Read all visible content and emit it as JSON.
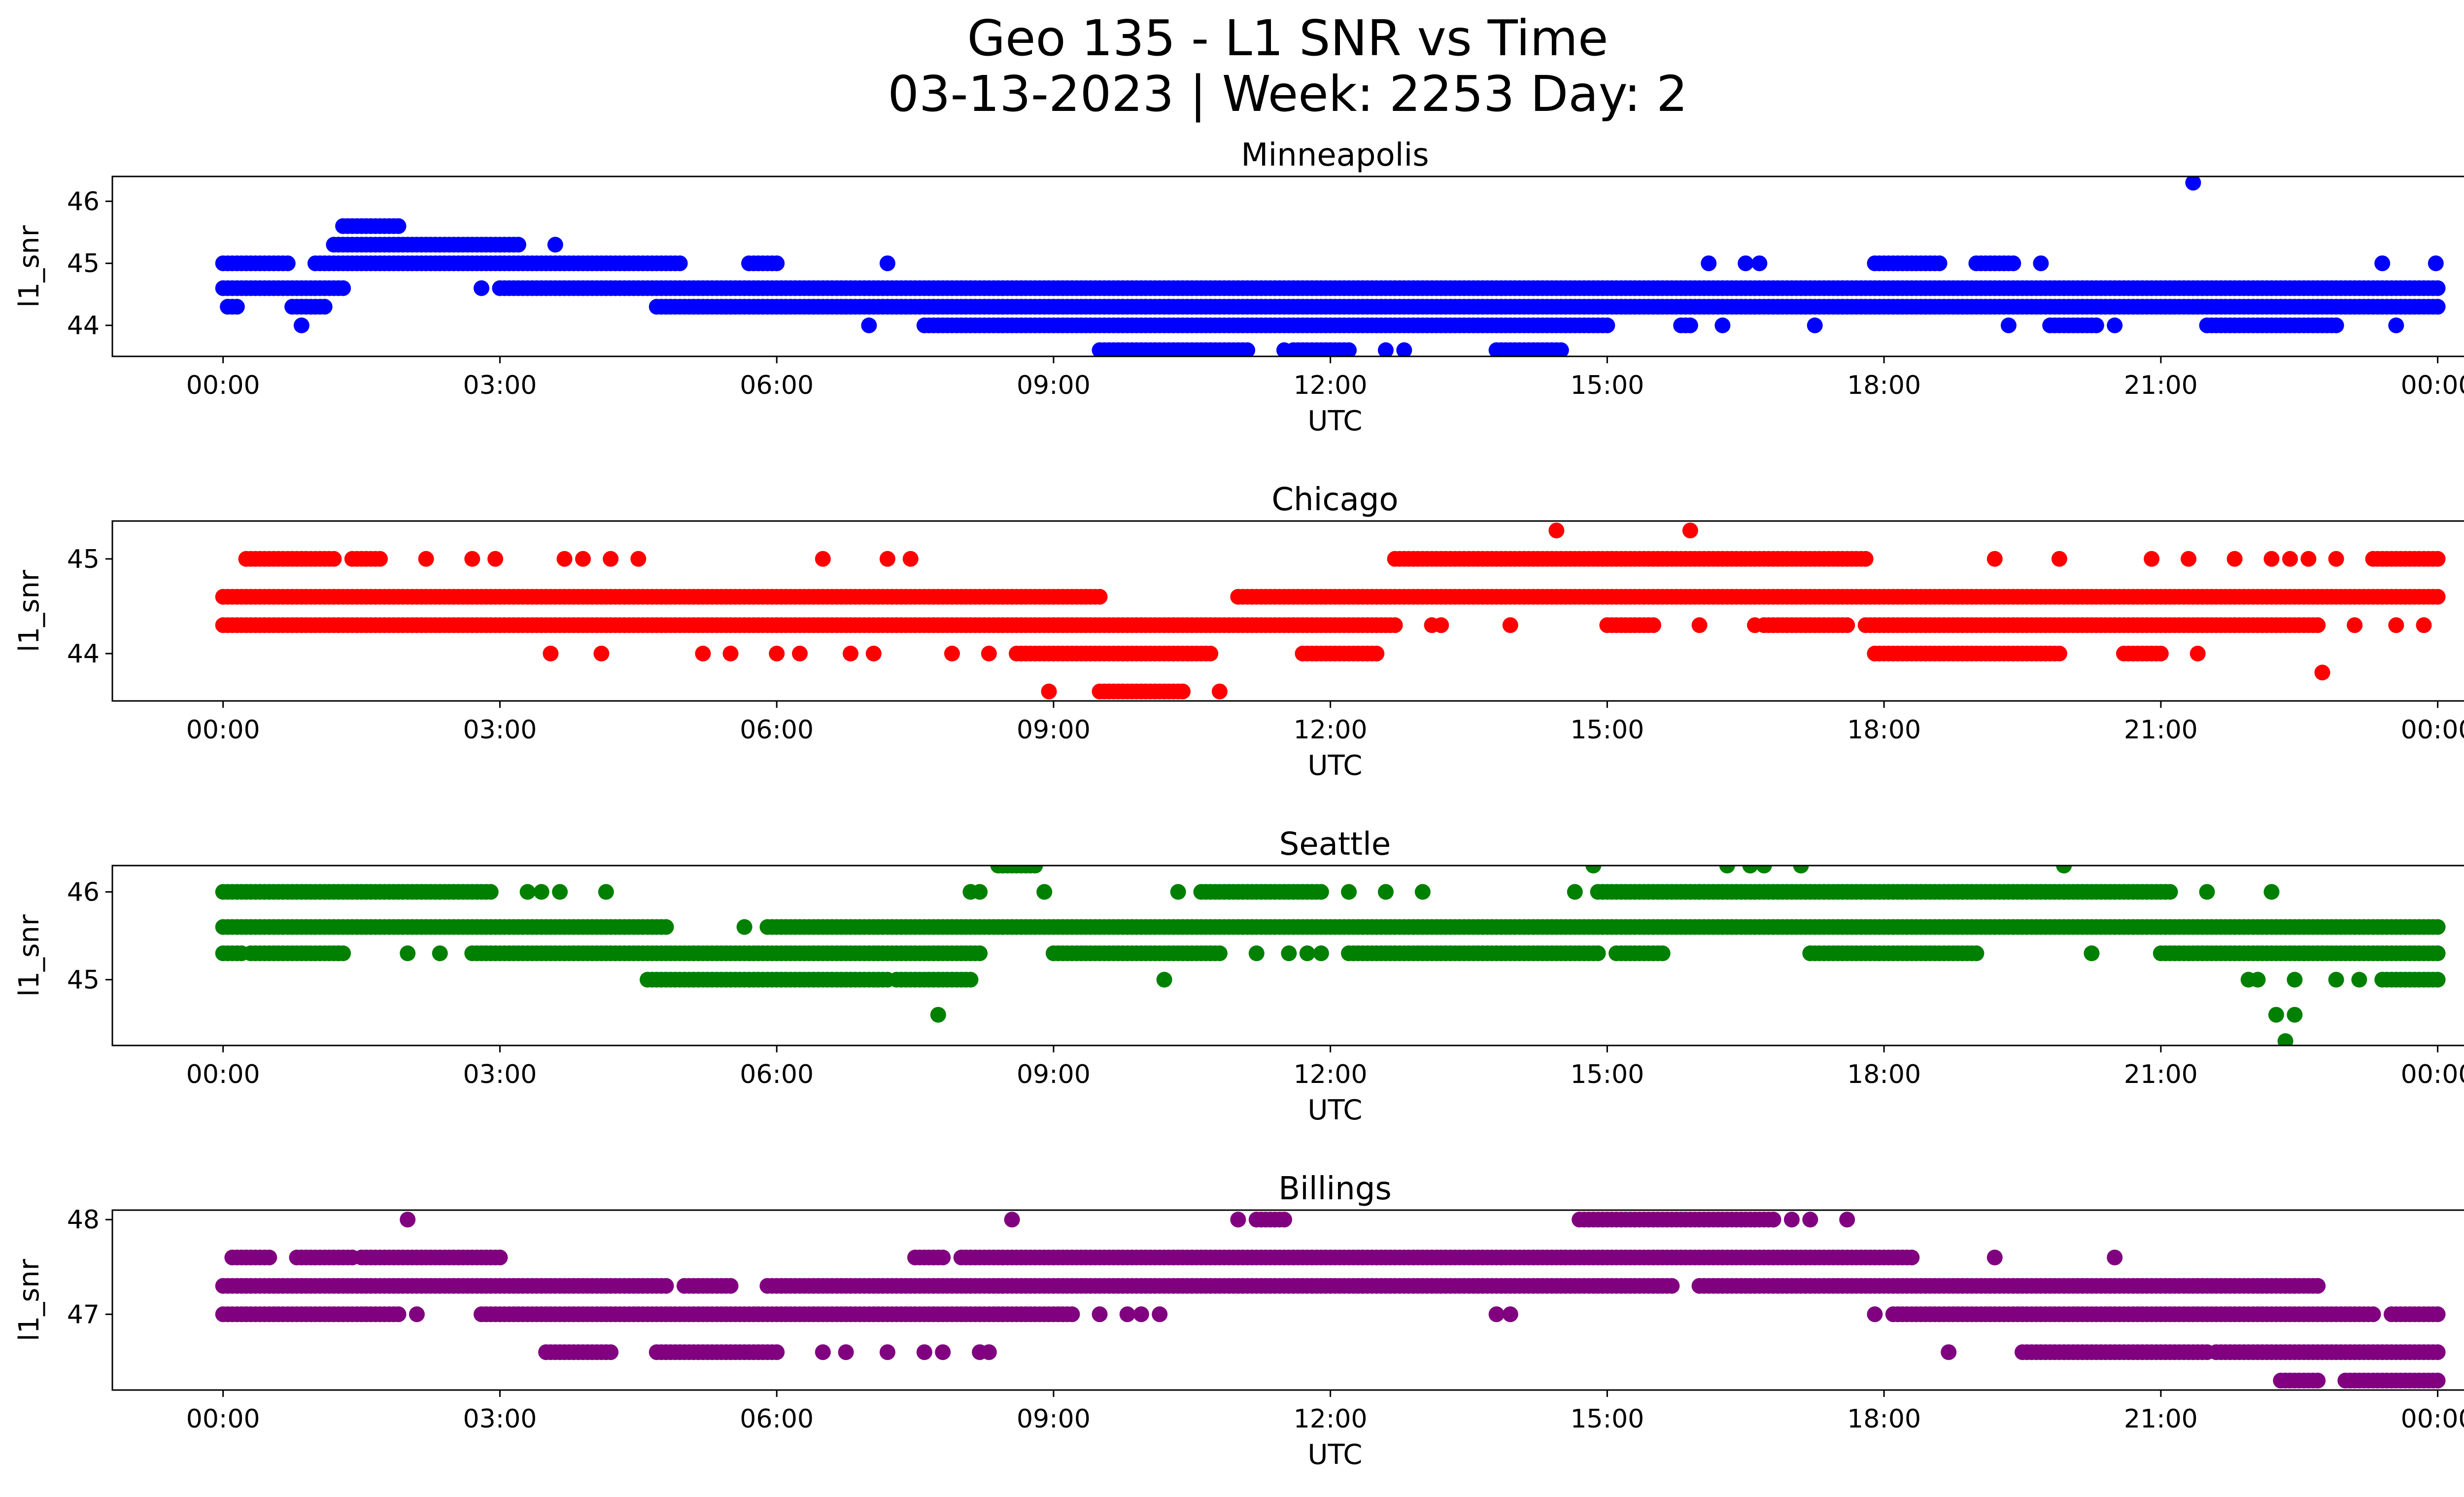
{
  "chart_data": {
    "type": "scatter",
    "title_line1": "Geo 135 - L1 SNR vs Time",
    "title_line2": "03-13-2023 | Week: 2253 Day: 2",
    "xlabel": "UTC",
    "ylabel": "l1_snr",
    "x_ticks": [
      "00:00",
      "03:00",
      "06:00",
      "09:00",
      "12:00",
      "15:00",
      "18:00",
      "21:00",
      "00:00"
    ],
    "x_range_hours": [
      -1.2,
      25.3
    ],
    "grid": false,
    "subplots": [
      {
        "title": "Minneapolis",
        "color": "#0000ff",
        "ylim": [
          43.5,
          46.4
        ],
        "y_ticks": [
          "44",
          "45",
          "46"
        ],
        "y_tick_values": [
          44,
          45,
          46
        ],
        "levels": [
          {
            "y": 44.6,
            "ranges": [
              [
                0.0,
                1.3
              ],
              [
                3.0,
                24.0
              ]
            ]
          },
          {
            "y": 44.3,
            "ranges": [
              [
                0.05,
                0.15
              ],
              [
                0.75,
                1.1
              ],
              [
                4.7,
                24.0
              ]
            ]
          },
          {
            "y": 45.0,
            "ranges": [
              [
                0.0,
                0.7
              ],
              [
                1.0,
                4.9
              ],
              [
                5.7,
                6.0
              ],
              [
                16.1,
                16.1
              ],
              [
                17.9,
                18.6
              ],
              [
                19.0,
                19.4
              ]
            ]
          },
          {
            "y": 45.3,
            "ranges": [
              [
                1.2,
                3.2
              ]
            ]
          },
          {
            "y": 45.6,
            "ranges": [
              [
                1.3,
                1.9
              ]
            ]
          },
          {
            "y": 44.0,
            "ranges": [
              [
                7.6,
                15.0
              ],
              [
                15.8,
                15.9
              ],
              [
                19.8,
                20.3
              ],
              [
                21.5,
                22.9
              ]
            ]
          },
          {
            "y": 43.6,
            "ranges": [
              [
                9.5,
                11.1
              ],
              [
                11.6,
                12.2
              ],
              [
                13.8,
                14.5
              ]
            ]
          }
        ],
        "points": [
          [
            0.85,
            44.0
          ],
          [
            2.8,
            44.6
          ],
          [
            3.6,
            45.3
          ],
          [
            4.95,
            45.0
          ],
          [
            7.2,
            45.0
          ],
          [
            7.0,
            44.0
          ],
          [
            10.0,
            44.3
          ],
          [
            10.25,
            44.3
          ],
          [
            11.5,
            43.6
          ],
          [
            12.6,
            43.6
          ],
          [
            12.8,
            43.6
          ],
          [
            16.5,
            45.0
          ],
          [
            16.65,
            45.0
          ],
          [
            16.25,
            44.0
          ],
          [
            17.25,
            44.0
          ],
          [
            19.7,
            45.0
          ],
          [
            19.35,
            44.0
          ],
          [
            20.5,
            44.0
          ],
          [
            21.35,
            46.3
          ],
          [
            23.4,
            45.0
          ],
          [
            23.55,
            44.0
          ],
          [
            23.98,
            45.0
          ]
        ]
      },
      {
        "title": "Chicago",
        "color": "#ff0000",
        "ylim": [
          43.5,
          45.4
        ],
        "y_ticks": [
          "44",
          "45"
        ],
        "y_tick_values": [
          44,
          45
        ],
        "levels": [
          {
            "y": 44.6,
            "ranges": [
              [
                0.0,
                9.5
              ],
              [
                11.0,
                24.0
              ]
            ]
          },
          {
            "y": 44.3,
            "ranges": [
              [
                0.0,
                12.7
              ],
              [
                15.0,
                15.5
              ],
              [
                16.7,
                17.6
              ],
              [
                17.8,
                22.7
              ]
            ]
          },
          {
            "y": 45.0,
            "ranges": [
              [
                0.3,
                1.2
              ],
              [
                1.4,
                1.7
              ],
              [
                12.7,
                17.8
              ],
              [
                23.3,
                24.0
              ]
            ]
          },
          {
            "y": 44.0,
            "ranges": [
              [
                8.6,
                10.7
              ],
              [
                11.7,
                12.5
              ],
              [
                17.9,
                19.9
              ],
              [
                20.6,
                21.0
              ]
            ]
          },
          {
            "y": 43.6,
            "ranges": [
              [
                9.5,
                10.4
              ]
            ]
          }
        ],
        "points": [
          [
            0.25,
            45.0
          ],
          [
            2.2,
            45.0
          ],
          [
            2.7,
            45.0
          ],
          [
            2.95,
            45.0
          ],
          [
            3.7,
            45.0
          ],
          [
            3.9,
            45.0
          ],
          [
            4.2,
            45.0
          ],
          [
            4.5,
            45.0
          ],
          [
            6.5,
            45.0
          ],
          [
            7.2,
            45.0
          ],
          [
            7.45,
            45.0
          ],
          [
            3.55,
            44.0
          ],
          [
            4.1,
            44.0
          ],
          [
            5.2,
            44.0
          ],
          [
            5.5,
            44.0
          ],
          [
            6.0,
            44.0
          ],
          [
            6.25,
            44.0
          ],
          [
            6.8,
            44.0
          ],
          [
            7.05,
            44.0
          ],
          [
            7.9,
            44.0
          ],
          [
            8.3,
            44.0
          ],
          [
            8.95,
            43.6
          ],
          [
            10.8,
            43.6
          ],
          [
            12.4,
            44.0
          ],
          [
            13.1,
            44.3
          ],
          [
            13.2,
            44.3
          ],
          [
            13.95,
            44.3
          ],
          [
            14.45,
            45.3
          ],
          [
            15.9,
            45.3
          ],
          [
            16.0,
            44.3
          ],
          [
            16.6,
            44.3
          ],
          [
            19.2,
            45.0
          ],
          [
            19.9,
            45.0
          ],
          [
            20.9,
            45.0
          ],
          [
            21.3,
            45.0
          ],
          [
            21.8,
            45.0
          ],
          [
            22.2,
            45.0
          ],
          [
            22.4,
            45.0
          ],
          [
            22.6,
            45.0
          ],
          [
            22.9,
            45.0
          ],
          [
            21.4,
            44.0
          ],
          [
            22.75,
            43.8
          ],
          [
            23.1,
            44.3
          ],
          [
            23.55,
            44.3
          ],
          [
            23.85,
            44.3
          ]
        ]
      },
      {
        "title": "Seattle",
        "color": "#008000",
        "ylim": [
          44.25,
          46.3
        ],
        "y_ticks": [
          "45",
          "46"
        ],
        "y_tick_values": [
          45,
          46
        ],
        "levels": [
          {
            "y": 45.6,
            "ranges": [
              [
                0.0,
                4.8
              ],
              [
                5.9,
                24.0
              ]
            ]
          },
          {
            "y": 45.3,
            "ranges": [
              [
                0.0,
                0.2
              ],
              [
                0.3,
                1.3
              ],
              [
                2.7,
                8.2
              ],
              [
                9.0,
                10.8
              ],
              [
                12.2,
                14.9
              ],
              [
                15.1,
                15.6
              ],
              [
                17.2,
                19.0
              ],
              [
                21.0,
                24.0
              ]
            ]
          },
          {
            "y": 46.0,
            "ranges": [
              [
                0.0,
                2.9
              ],
              [
                10.6,
                11.9
              ],
              [
                14.9,
                16.0
              ],
              [
                16.0,
                21.1
              ]
            ]
          },
          {
            "y": 45.0,
            "ranges": [
              [
                4.6,
                7.2
              ],
              [
                7.3,
                8.1
              ],
              [
                23.4,
                24.0
              ]
            ]
          },
          {
            "y": 46.3,
            "ranges": [
              [
                8.4,
                8.8
              ]
            ]
          }
        ],
        "points": [
          [
            3.3,
            46.0
          ],
          [
            3.45,
            46.0
          ],
          [
            3.65,
            46.0
          ],
          [
            4.15,
            46.0
          ],
          [
            8.1,
            46.0
          ],
          [
            8.2,
            46.0
          ],
          [
            8.9,
            46.0
          ],
          [
            10.35,
            46.0
          ],
          [
            12.2,
            46.0
          ],
          [
            12.6,
            46.0
          ],
          [
            13.0,
            46.0
          ],
          [
            14.65,
            46.0
          ],
          [
            14.85,
            46.3
          ],
          [
            16.3,
            46.3
          ],
          [
            16.55,
            46.3
          ],
          [
            16.7,
            46.3
          ],
          [
            17.1,
            46.3
          ],
          [
            19.95,
            46.3
          ],
          [
            21.5,
            46.0
          ],
          [
            22.2,
            46.0
          ],
          [
            1.25,
            45.3
          ],
          [
            2.0,
            45.3
          ],
          [
            2.35,
            45.3
          ],
          [
            11.2,
            45.3
          ],
          [
            11.55,
            45.3
          ],
          [
            11.75,
            45.3
          ],
          [
            11.9,
            45.3
          ],
          [
            20.25,
            45.3
          ],
          [
            22.55,
            45.3
          ],
          [
            5.65,
            45.6
          ],
          [
            10.2,
            45.0
          ],
          [
            7.75,
            44.6
          ],
          [
            21.95,
            45.0
          ],
          [
            22.05,
            45.0
          ],
          [
            22.45,
            45.0
          ],
          [
            22.9,
            45.0
          ],
          [
            23.15,
            45.0
          ],
          [
            22.25,
            44.6
          ],
          [
            22.45,
            44.6
          ],
          [
            22.35,
            44.3
          ]
        ]
      },
      {
        "title": "Billings",
        "color": "#800080",
        "ylim": [
          46.2,
          48.1
        ],
        "y_ticks": [
          "47",
          "48"
        ],
        "y_tick_values": [
          47,
          48
        ],
        "levels": [
          {
            "y": 47.3,
            "ranges": [
              [
                0.0,
                4.8
              ],
              [
                5.0,
                5.5
              ],
              [
                5.9,
                15.7
              ],
              [
                16.0,
                22.7
              ]
            ]
          },
          {
            "y": 47.0,
            "ranges": [
              [
                0.0,
                1.9
              ],
              [
                2.8,
                9.2
              ],
              [
                18.1,
                23.3
              ],
              [
                23.5,
                24.0
              ]
            ]
          },
          {
            "y": 47.6,
            "ranges": [
              [
                0.1,
                0.5
              ],
              [
                0.8,
                1.4
              ],
              [
                1.5,
                3.0
              ],
              [
                7.5,
                7.8
              ],
              [
                8.0,
                18.3
              ]
            ]
          },
          {
            "y": 46.6,
            "ranges": [
              [
                3.5,
                4.2
              ],
              [
                4.7,
                6.0
              ],
              [
                19.5,
                21.5
              ],
              [
                21.6,
                24.0
              ]
            ]
          },
          {
            "y": 48.0,
            "ranges": [
              [
                14.7,
                16.8
              ],
              [
                11.2,
                11.5
              ]
            ]
          },
          {
            "y": 46.3,
            "ranges": [
              [
                22.3,
                22.7
              ],
              [
                23.0,
                24.0
              ]
            ]
          }
        ],
        "points": [
          [
            2.0,
            48.0
          ],
          [
            8.55,
            48.0
          ],
          [
            11.0,
            48.0
          ],
          [
            16.8,
            48.0
          ],
          [
            17.0,
            48.0
          ],
          [
            17.2,
            48.0
          ],
          [
            17.6,
            48.0
          ],
          [
            19.2,
            47.6
          ],
          [
            20.5,
            47.6
          ],
          [
            22.45,
            47.3
          ],
          [
            18.7,
            46.6
          ],
          [
            17.9,
            47.0
          ],
          [
            2.1,
            47.0
          ],
          [
            13.8,
            47.0
          ],
          [
            13.95,
            47.0
          ],
          [
            6.5,
            46.6
          ],
          [
            6.75,
            46.6
          ],
          [
            7.2,
            46.6
          ],
          [
            7.6,
            46.6
          ],
          [
            7.8,
            46.6
          ],
          [
            8.2,
            46.6
          ],
          [
            8.3,
            46.6
          ],
          [
            9.5,
            47.0
          ],
          [
            9.8,
            47.0
          ],
          [
            9.95,
            47.0
          ],
          [
            10.15,
            47.0
          ]
        ]
      }
    ]
  }
}
